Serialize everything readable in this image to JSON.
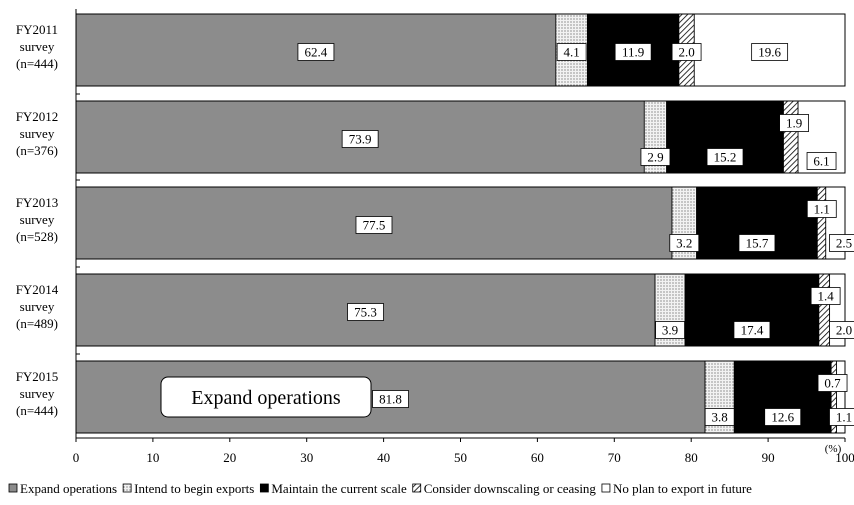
{
  "chart_data": {
    "type": "bar",
    "orientation": "horizontal",
    "stacked": true,
    "categories": [
      [
        "FY2011",
        "survey",
        "(n=444)"
      ],
      [
        "FY2012",
        "survey",
        "(n=376)"
      ],
      [
        "FY2013",
        "survey",
        "(n=528)"
      ],
      [
        "FY2014",
        "survey",
        "(n=489)"
      ],
      [
        "FY2015",
        "survey",
        "(n=444)"
      ]
    ],
    "series": [
      {
        "name": "Expand operations",
        "values": [
          62.4,
          73.9,
          77.5,
          75.3,
          81.8
        ],
        "color": "#8c8c8c"
      },
      {
        "name": "Intend to begin exports",
        "values": [
          4.1,
          2.9,
          3.2,
          3.9,
          3.8
        ],
        "color": "#ececec",
        "pattern": "dots"
      },
      {
        "name": "Maintain the current scale",
        "values": [
          11.9,
          15.2,
          15.7,
          17.4,
          12.6
        ],
        "color": "#000000"
      },
      {
        "name": "Consider downscaling or ceasing",
        "values": [
          2.0,
          1.9,
          1.1,
          1.4,
          0.7
        ],
        "color": "#ffffff",
        "pattern": "diagonal"
      },
      {
        "name": "No plan to export in future",
        "values": [
          19.6,
          6.1,
          2.5,
          2.0,
          1.1
        ],
        "color": "#ffffff"
      }
    ],
    "xlim": [
      0,
      100
    ],
    "xticks": [
      "0",
      "10",
      "20",
      "30",
      "40",
      "50",
      "60",
      "70",
      "80",
      "90",
      "100"
    ],
    "xunit": "(%)",
    "annotation": "Expand operations",
    "legend_position": "bottom"
  }
}
